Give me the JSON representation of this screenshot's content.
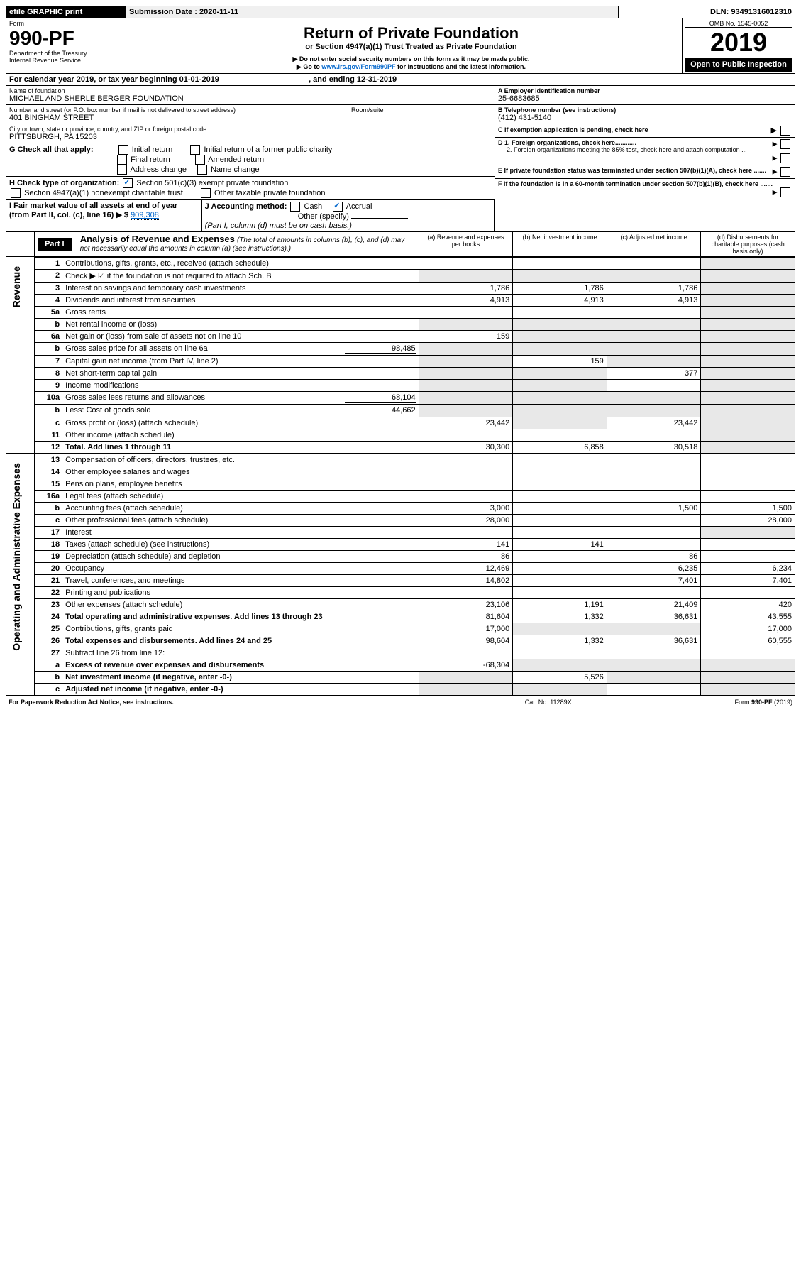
{
  "topbar": {
    "efile": "efile GRAPHIC print",
    "submission_label": "Submission Date : 2020-11-11",
    "dln": "DLN: 93491316012310"
  },
  "header": {
    "form_label": "Form",
    "form_number": "990-PF",
    "dept1": "Department of the Treasury",
    "dept2": "Internal Revenue Service",
    "title": "Return of Private Foundation",
    "subtitle": "or Section 4947(a)(1) Trust Treated as Private Foundation",
    "note1": "▶ Do not enter social security numbers on this form as it may be made public.",
    "note2_pre": "▶ Go to ",
    "note2_link": "www.irs.gov/Form990PF",
    "note2_post": " for instructions and the latest information.",
    "omb": "OMB No. 1545-0052",
    "year": "2019",
    "open": "Open to Public Inspection"
  },
  "period": {
    "line_pre": "For calendar year 2019, or tax year beginning ",
    "begin": "01-01-2019",
    "mid": " , and ending ",
    "end": "12-31-2019"
  },
  "entity": {
    "name_label": "Name of foundation",
    "name": "MICHAEL AND SHERLE BERGER FOUNDATION",
    "street_label": "Number and street (or P.O. box number if mail is not delivered to street address)",
    "street": "401 BINGHAM STREET",
    "room_label": "Room/suite",
    "city_label": "City or town, state or province, country, and ZIP or foreign postal code",
    "city": "PITTSBURGH, PA  15203",
    "a_label": "A Employer identification number",
    "a_val": "25-6683685",
    "b_label": "B Telephone number (see instructions)",
    "b_val": "(412) 431-5140",
    "c_label": "C If exemption application is pending, check here",
    "d1": "D 1. Foreign organizations, check here............",
    "d2": "2. Foreign organizations meeting the 85% test, check here and attach computation ...",
    "e_label": "E If private foundation status was terminated under section 507(b)(1)(A), check here .......",
    "f_label": "F If the foundation is in a 60-month termination under section 507(b)(1)(B), check here .......",
    "g_label": "G Check all that apply:",
    "g_initial": "Initial return",
    "g_initial_former": "Initial return of a former public charity",
    "g_final": "Final return",
    "g_amended": "Amended return",
    "g_address": "Address change",
    "g_name": "Name change",
    "h_label": "H Check type of organization:",
    "h_501c3": "Section 501(c)(3) exempt private foundation",
    "h_4947": "Section 4947(a)(1) nonexempt charitable trust",
    "h_other": "Other taxable private foundation",
    "i_label": "I Fair market value of all assets at end of year (from Part II, col. (c), line 16) ▶ $",
    "i_val": "909,308",
    "j_label": "J Accounting method:",
    "j_cash": "Cash",
    "j_accrual": "Accrual",
    "j_other": "Other (specify)",
    "j_note": "(Part I, column (d) must be on cash basis.)"
  },
  "part1": {
    "label": "Part I",
    "title": "Analysis of Revenue and Expenses",
    "title_note": " (The total of amounts in columns (b), (c), and (d) may not necessarily equal the amounts in column (a) (see instructions).)",
    "col_a": "(a) Revenue and expenses per books",
    "col_b": "(b) Net investment income",
    "col_c": "(c) Adjusted net income",
    "col_d": "(d) Disbursements for charitable purposes (cash basis only)",
    "revenue_label": "Revenue",
    "expenses_label": "Operating and Administrative Expenses",
    "rows": [
      {
        "n": "1",
        "t": "Contributions, gifts, grants, etc., received (attach schedule)"
      },
      {
        "n": "2",
        "t": "Check ▶ ☑ if the foundation is not required to attach Sch. B"
      },
      {
        "n": "3",
        "t": "Interest on savings and temporary cash investments",
        "a": "1,786",
        "b": "1,786",
        "c": "1,786"
      },
      {
        "n": "4",
        "t": "Dividends and interest from securities",
        "a": "4,913",
        "b": "4,913",
        "c": "4,913"
      },
      {
        "n": "5a",
        "t": "Gross rents"
      },
      {
        "n": "b",
        "t": "Net rental income or (loss)"
      },
      {
        "n": "6a",
        "t": "Net gain or (loss) from sale of assets not on line 10",
        "a": "159"
      },
      {
        "n": "b",
        "t": "Gross sales price for all assets on line 6a",
        "inset": "98,485"
      },
      {
        "n": "7",
        "t": "Capital gain net income (from Part IV, line 2)",
        "b": "159"
      },
      {
        "n": "8",
        "t": "Net short-term capital gain",
        "c": "377"
      },
      {
        "n": "9",
        "t": "Income modifications"
      },
      {
        "n": "10a",
        "t": "Gross sales less returns and allowances",
        "inset": "68,104"
      },
      {
        "n": "b",
        "t": "Less: Cost of goods sold",
        "inset": "44,662"
      },
      {
        "n": "c",
        "t": "Gross profit or (loss) (attach schedule)",
        "a": "23,442",
        "c": "23,442"
      },
      {
        "n": "11",
        "t": "Other income (attach schedule)"
      },
      {
        "n": "12",
        "t": "Total. Add lines 1 through 11",
        "a": "30,300",
        "b": "6,858",
        "c": "30,518",
        "bold": true
      }
    ],
    "exp_rows": [
      {
        "n": "13",
        "t": "Compensation of officers, directors, trustees, etc."
      },
      {
        "n": "14",
        "t": "Other employee salaries and wages"
      },
      {
        "n": "15",
        "t": "Pension plans, employee benefits"
      },
      {
        "n": "16a",
        "t": "Legal fees (attach schedule)"
      },
      {
        "n": "b",
        "t": "Accounting fees (attach schedule)",
        "a": "3,000",
        "c": "1,500",
        "d": "1,500"
      },
      {
        "n": "c",
        "t": "Other professional fees (attach schedule)",
        "a": "28,000",
        "d": "28,000"
      },
      {
        "n": "17",
        "t": "Interest"
      },
      {
        "n": "18",
        "t": "Taxes (attach schedule) (see instructions)",
        "a": "141",
        "b": "141"
      },
      {
        "n": "19",
        "t": "Depreciation (attach schedule) and depletion",
        "a": "86",
        "c": "86"
      },
      {
        "n": "20",
        "t": "Occupancy",
        "a": "12,469",
        "c": "6,235",
        "d": "6,234"
      },
      {
        "n": "21",
        "t": "Travel, conferences, and meetings",
        "a": "14,802",
        "c": "7,401",
        "d": "7,401"
      },
      {
        "n": "22",
        "t": "Printing and publications"
      },
      {
        "n": "23",
        "t": "Other expenses (attach schedule)",
        "a": "23,106",
        "b": "1,191",
        "c": "21,409",
        "d": "420"
      },
      {
        "n": "24",
        "t": "Total operating and administrative expenses. Add lines 13 through 23",
        "a": "81,604",
        "b": "1,332",
        "c": "36,631",
        "d": "43,555",
        "bold": true
      },
      {
        "n": "25",
        "t": "Contributions, gifts, grants paid",
        "a": "17,000",
        "d": "17,000"
      },
      {
        "n": "26",
        "t": "Total expenses and disbursements. Add lines 24 and 25",
        "a": "98,604",
        "b": "1,332",
        "c": "36,631",
        "d": "60,555",
        "bold": true
      },
      {
        "n": "27",
        "t": "Subtract line 26 from line 12:"
      },
      {
        "n": "a",
        "t": "Excess of revenue over expenses and disbursements",
        "a": "-68,304",
        "bold": true
      },
      {
        "n": "b",
        "t": "Net investment income (if negative, enter -0-)",
        "b": "5,526",
        "bold": true
      },
      {
        "n": "c",
        "t": "Adjusted net income (if negative, enter -0-)",
        "bold": true
      }
    ]
  },
  "footer": {
    "left": "For Paperwork Reduction Act Notice, see instructions.",
    "mid": "Cat. No. 11289X",
    "right": "Form 990-PF (2019)"
  }
}
